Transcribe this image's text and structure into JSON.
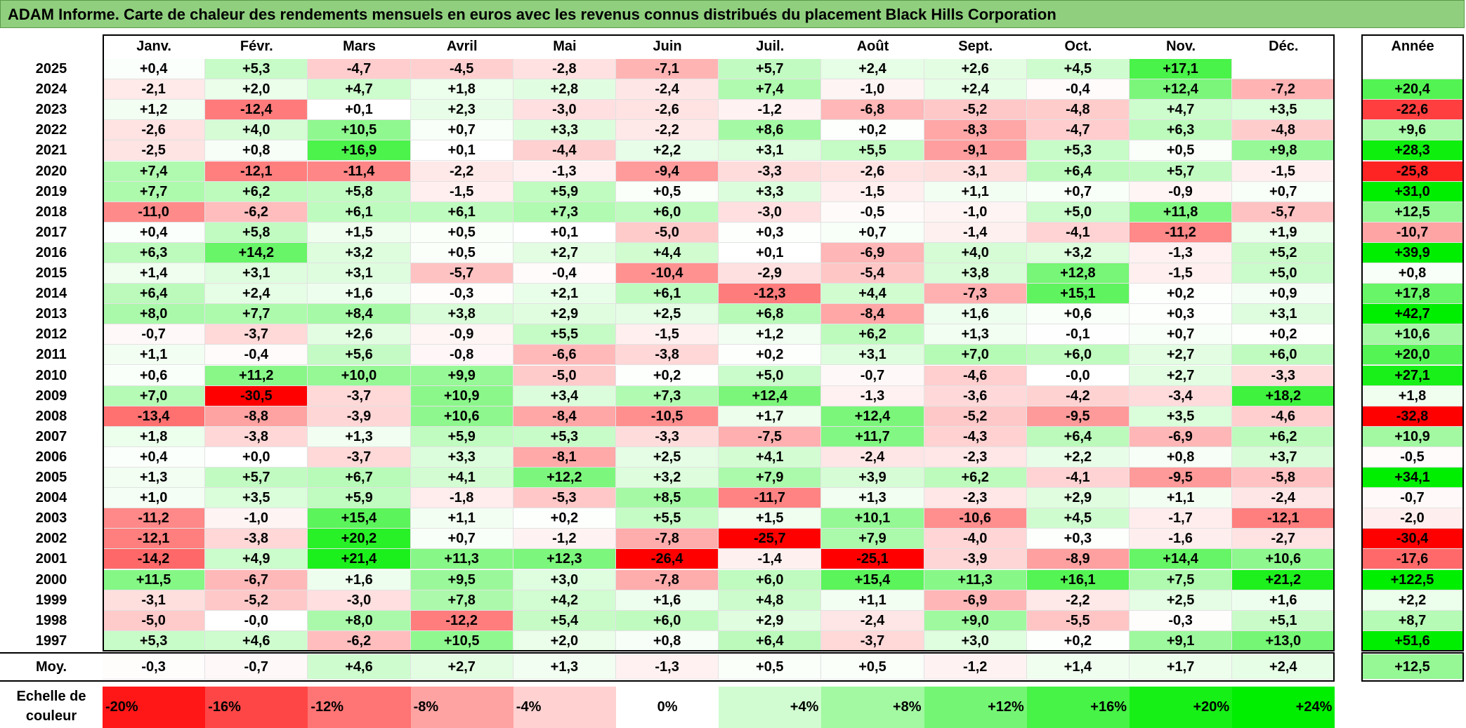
{
  "chart_data": {
    "type": "heatmap",
    "title": "ADAM Informe. Carte de chaleur des rendements mensuels en euros avec les revenus connus distribués du placement Black Hills Corporation",
    "months": [
      "Janv.",
      "Févr.",
      "Mars",
      "Avril",
      "Mai",
      "Juin",
      "Juil.",
      "Août",
      "Sept.",
      "Oct.",
      "Nov.",
      "Déc."
    ],
    "year_header": "Année",
    "average_label": "Moy.",
    "rows": [
      {
        "year": "2025",
        "values": [
          "+0,4",
          "+5,3",
          "-4,7",
          "-4,5",
          "-2,8",
          "-7,1",
          "+5,7",
          "+2,4",
          "+2,6",
          "+4,5",
          "+17,1",
          ""
        ],
        "annual": ""
      },
      {
        "year": "2024",
        "values": [
          "-2,1",
          "+2,0",
          "+4,7",
          "+1,8",
          "+2,8",
          "-2,4",
          "+7,4",
          "-1,0",
          "+2,4",
          "-0,4",
          "+12,4",
          "-7,2"
        ],
        "annual": "+20,4"
      },
      {
        "year": "2023",
        "values": [
          "+1,2",
          "-12,4",
          "+0,1",
          "+2,3",
          "-3,0",
          "-2,6",
          "-1,2",
          "-6,8",
          "-5,2",
          "-4,8",
          "+4,7",
          "+3,5"
        ],
        "annual": "-22,6"
      },
      {
        "year": "2022",
        "values": [
          "-2,6",
          "+4,0",
          "+10,5",
          "+0,7",
          "+3,3",
          "-2,2",
          "+8,6",
          "+0,2",
          "-8,3",
          "-4,7",
          "+6,3",
          "-4,8"
        ],
        "annual": "+9,6"
      },
      {
        "year": "2021",
        "values": [
          "-2,5",
          "+0,8",
          "+16,9",
          "+0,1",
          "-4,4",
          "+2,2",
          "+3,1",
          "+5,5",
          "-9,1",
          "+5,3",
          "+0,5",
          "+9,8"
        ],
        "annual": "+28,3"
      },
      {
        "year": "2020",
        "values": [
          "+7,4",
          "-12,1",
          "-11,4",
          "-2,2",
          "-1,3",
          "-9,4",
          "-3,3",
          "-2,6",
          "-3,1",
          "+6,4",
          "+5,7",
          "-1,5"
        ],
        "annual": "-25,8"
      },
      {
        "year": "2019",
        "values": [
          "+7,7",
          "+6,2",
          "+5,8",
          "-1,5",
          "+5,9",
          "+0,5",
          "+3,3",
          "-1,5",
          "+1,1",
          "+0,7",
          "-0,9",
          "+0,7"
        ],
        "annual": "+31,0"
      },
      {
        "year": "2018",
        "values": [
          "-11,0",
          "-6,2",
          "+6,1",
          "+6,1",
          "+7,3",
          "+6,0",
          "-3,0",
          "-0,5",
          "-1,0",
          "+5,0",
          "+11,8",
          "-5,7"
        ],
        "annual": "+12,5"
      },
      {
        "year": "2017",
        "values": [
          "+0,4",
          "+5,8",
          "+1,5",
          "+0,5",
          "+0,1",
          "-5,0",
          "+0,3",
          "+0,7",
          "-1,4",
          "-4,1",
          "-11,2",
          "+1,9"
        ],
        "annual": "-10,7"
      },
      {
        "year": "2016",
        "values": [
          "+6,3",
          "+14,2",
          "+3,2",
          "+0,5",
          "+2,7",
          "+4,4",
          "+0,1",
          "-6,9",
          "+4,0",
          "+3,2",
          "-1,3",
          "+5,2"
        ],
        "annual": "+39,9"
      },
      {
        "year": "2015",
        "values": [
          "+1,4",
          "+3,1",
          "+3,1",
          "-5,7",
          "-0,4",
          "-10,4",
          "-2,9",
          "-5,4",
          "+3,8",
          "+12,8",
          "-1,5",
          "+5,0"
        ],
        "annual": "+0,8"
      },
      {
        "year": "2014",
        "values": [
          "+6,4",
          "+2,4",
          "+1,6",
          "-0,3",
          "+2,1",
          "+6,1",
          "-12,3",
          "+4,4",
          "-7,3",
          "+15,1",
          "+0,2",
          "+0,9"
        ],
        "annual": "+17,8"
      },
      {
        "year": "2013",
        "values": [
          "+8,0",
          "+7,7",
          "+8,4",
          "+3,8",
          "+2,9",
          "+2,5",
          "+6,8",
          "-8,4",
          "+1,6",
          "+0,6",
          "+0,3",
          "+3,1"
        ],
        "annual": "+42,7"
      },
      {
        "year": "2012",
        "values": [
          "-0,7",
          "-3,7",
          "+2,6",
          "-0,9",
          "+5,5",
          "-1,5",
          "+1,2",
          "+6,2",
          "+1,3",
          "-0,1",
          "+0,7",
          "+0,2"
        ],
        "annual": "+10,6"
      },
      {
        "year": "2011",
        "values": [
          "+1,1",
          "-0,4",
          "+5,6",
          "-0,8",
          "-6,6",
          "-3,8",
          "+0,2",
          "+3,1",
          "+7,0",
          "+6,0",
          "+2,7",
          "+6,0"
        ],
        "annual": "+20,0"
      },
      {
        "year": "2010",
        "values": [
          "+0,6",
          "+11,2",
          "+10,0",
          "+9,9",
          "-5,0",
          "+0,2",
          "+5,0",
          "-0,7",
          "-4,6",
          "-0,0",
          "+2,7",
          "-3,3"
        ],
        "annual": "+27,1"
      },
      {
        "year": "2009",
        "values": [
          "+7,0",
          "-30,5",
          "-3,7",
          "+10,9",
          "+3,4",
          "+7,3",
          "+12,4",
          "-1,3",
          "-3,6",
          "-4,2",
          "-3,4",
          "+18,2"
        ],
        "annual": "+1,8"
      },
      {
        "year": "2008",
        "values": [
          "-13,4",
          "-8,8",
          "-3,9",
          "+10,6",
          "-8,4",
          "-10,5",
          "+1,7",
          "+12,4",
          "-5,2",
          "-9,5",
          "+3,5",
          "-4,6"
        ],
        "annual": "-32,8"
      },
      {
        "year": "2007",
        "values": [
          "+1,8",
          "-3,8",
          "+1,3",
          "+5,9",
          "+5,3",
          "-3,3",
          "-7,5",
          "+11,7",
          "-4,3",
          "+6,4",
          "-6,9",
          "+6,2"
        ],
        "annual": "+10,9"
      },
      {
        "year": "2006",
        "values": [
          "+0,4",
          "+0,0",
          "-3,7",
          "+3,3",
          "-8,1",
          "+2,5",
          "+4,1",
          "-2,4",
          "-2,3",
          "+2,2",
          "+0,8",
          "+3,7"
        ],
        "annual": "-0,5"
      },
      {
        "year": "2005",
        "values": [
          "+1,3",
          "+5,7",
          "+6,7",
          "+4,1",
          "+12,2",
          "+3,2",
          "+7,9",
          "+3,9",
          "+6,2",
          "-4,1",
          "-9,5",
          "-5,8"
        ],
        "annual": "+34,1"
      },
      {
        "year": "2004",
        "values": [
          "+1,0",
          "+3,5",
          "+5,9",
          "-1,8",
          "-5,3",
          "+8,5",
          "-11,7",
          "+1,3",
          "-2,3",
          "+2,9",
          "+1,1",
          "-2,4"
        ],
        "annual": "-0,7"
      },
      {
        "year": "2003",
        "values": [
          "-11,2",
          "-1,0",
          "+15,4",
          "+1,1",
          "+0,2",
          "+5,5",
          "+1,5",
          "+10,1",
          "-10,6",
          "+4,5",
          "-1,7",
          "-12,1"
        ],
        "annual": "-2,0"
      },
      {
        "year": "2002",
        "values": [
          "-12,1",
          "-3,8",
          "+20,2",
          "+0,7",
          "-1,2",
          "-7,8",
          "-25,7",
          "+7,9",
          "-4,0",
          "+0,3",
          "-1,6",
          "-2,7"
        ],
        "annual": "-30,4"
      },
      {
        "year": "2001",
        "values": [
          "-14,2",
          "+4,9",
          "+21,4",
          "+11,3",
          "+12,3",
          "-26,4",
          "-1,4",
          "-25,1",
          "-3,9",
          "-8,9",
          "+14,4",
          "+10,6"
        ],
        "annual": "-17,6"
      },
      {
        "year": "2000",
        "values": [
          "+11,5",
          "-6,7",
          "+1,6",
          "+9,5",
          "+3,0",
          "-7,8",
          "+6,0",
          "+15,4",
          "+11,3",
          "+16,1",
          "+7,5",
          "+21,2"
        ],
        "annual": "+122,5"
      },
      {
        "year": "1999",
        "values": [
          "-3,1",
          "-5,2",
          "-3,0",
          "+7,8",
          "+4,2",
          "+1,6",
          "+4,8",
          "+1,1",
          "-6,9",
          "-2,2",
          "+2,5",
          "+1,6"
        ],
        "annual": "+2,2"
      },
      {
        "year": "1998",
        "values": [
          "-5,0",
          "-0,0",
          "+8,0",
          "-12,2",
          "+5,4",
          "+6,0",
          "+2,9",
          "-2,4",
          "+9,0",
          "-5,5",
          "-0,3",
          "+5,1"
        ],
        "annual": "+8,7"
      },
      {
        "year": "1997",
        "values": [
          "+5,3",
          "+4,6",
          "-6,2",
          "+10,5",
          "+2,0",
          "+0,8",
          "+6,4",
          "-3,7",
          "+3,0",
          "+0,2",
          "+9,1",
          "+13,0"
        ],
        "annual": "+51,6"
      }
    ],
    "average": {
      "values": [
        "-0,3",
        "-0,7",
        "+4,6",
        "+2,7",
        "+1,3",
        "-1,3",
        "+0,5",
        "+0,5",
        "-1,2",
        "+1,4",
        "+1,7",
        "+2,4"
      ],
      "annual": "+12,5"
    },
    "legend": {
      "label": "Echelle de couleur",
      "items": [
        "-20%",
        "-16%",
        "-12%",
        "-8%",
        "-4%",
        "0%",
        "+4%",
        "+8%",
        "+12%",
        "+16%",
        "+20%",
        "+24%"
      ]
    },
    "colors": {
      "negative_max": "#ff0000",
      "neutral": "#ffffff",
      "positive_max": "#00ee00",
      "title_bar": "#8fcf7e"
    }
  }
}
